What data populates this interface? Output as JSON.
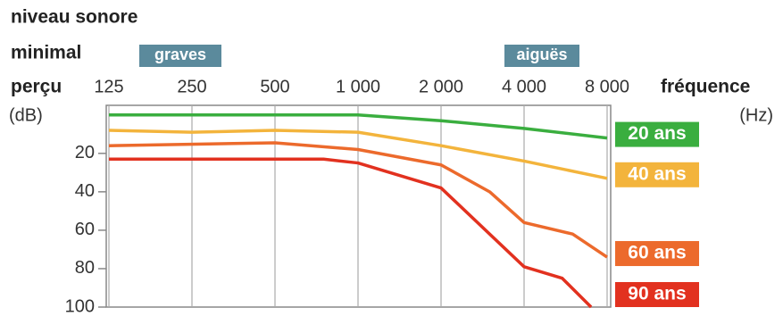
{
  "chart_data": {
    "type": "line",
    "title_lines": [
      "niveau sonore",
      "minimal",
      "perçu"
    ],
    "y_unit": "(dB)",
    "x_label": "fréquence",
    "x_unit": "(Hz)",
    "annotations": [
      "graves",
      "aiguës"
    ],
    "log_x": true,
    "y_inverted": true,
    "grid": true,
    "xlim": [
      125,
      8000
    ],
    "xticks": [
      125,
      250,
      500,
      {
        "value": 1000,
        "label": "1 000"
      },
      {
        "value": 2000,
        "label": "2 000"
      },
      {
        "value": 4000,
        "label": "4 000"
      },
      {
        "value": 8000,
        "label": "8 000"
      }
    ],
    "ylim": [
      -5,
      100
    ],
    "yticks": [
      20,
      40,
      60,
      80,
      100
    ],
    "series": [
      {
        "name": "20 ans",
        "color": "#3aae3f",
        "x": [
          125,
          1000,
          2000,
          4000,
          8000
        ],
        "values": [
          0,
          0,
          3,
          7,
          12
        ]
      },
      {
        "name": "40 ans",
        "color": "#f3b43c",
        "x": [
          125,
          250,
          500,
          1000,
          2000,
          4000,
          8000
        ],
        "values": [
          8,
          9,
          8,
          9,
          16,
          24,
          33
        ]
      },
      {
        "name": "60 ans",
        "color": "#ec6a2c",
        "x": [
          125,
          500,
          1000,
          2000,
          3000,
          4000,
          6000,
          8000
        ],
        "values": [
          16,
          14.5,
          18,
          26,
          40,
          56,
          62,
          74
        ]
      },
      {
        "name": "90 ans",
        "color": "#e2311f",
        "x": [
          125,
          500,
          750,
          1000,
          2000,
          4000,
          5500,
          7000
        ],
        "values": [
          23,
          23,
          23,
          25,
          38,
          79,
          85,
          100
        ]
      }
    ]
  }
}
